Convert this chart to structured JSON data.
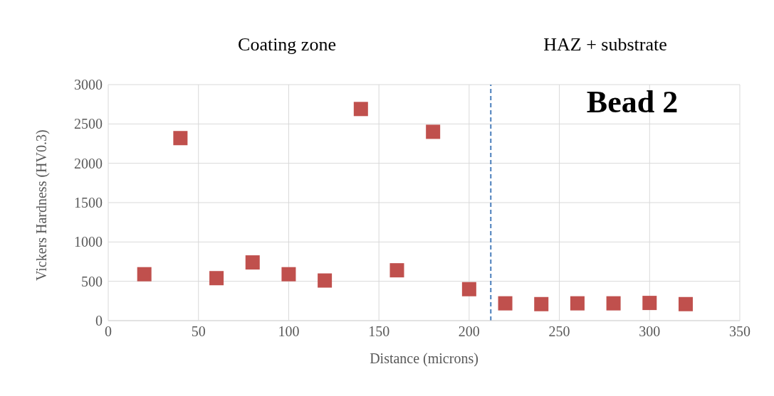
{
  "chart_data": {
    "type": "scatter",
    "xlabel": "Distance (microns)",
    "ylabel": "Vickers Hardness (HV0.3)",
    "x": [
      20,
      40,
      60,
      80,
      100,
      120,
      140,
      160,
      180,
      200,
      220,
      240,
      260,
      280,
      300,
      320
    ],
    "series": [
      {
        "color": "#c0504d",
        "values": [
          590,
          2320,
          540,
          740,
          590,
          510,
          2690,
          640,
          2400,
          400,
          220,
          210,
          220,
          220,
          225,
          210
        ]
      }
    ],
    "xlim": [
      0,
      350
    ],
    "xticks": [
      0,
      50,
      100,
      150,
      200,
      250,
      300,
      350
    ],
    "ylim": [
      0,
      3000
    ],
    "yticks": [
      0,
      500,
      1000,
      1500,
      2000,
      2500,
      3000
    ],
    "grid": true,
    "legend": false,
    "marker": "square",
    "ref_lines": [
      {
        "axis": "x",
        "value": 212,
        "color": "#4a7ebb",
        "line_style": "dashed"
      }
    ],
    "annotations": [
      "Coating zone",
      "HAZ + substrate",
      "Bead 2"
    ]
  }
}
